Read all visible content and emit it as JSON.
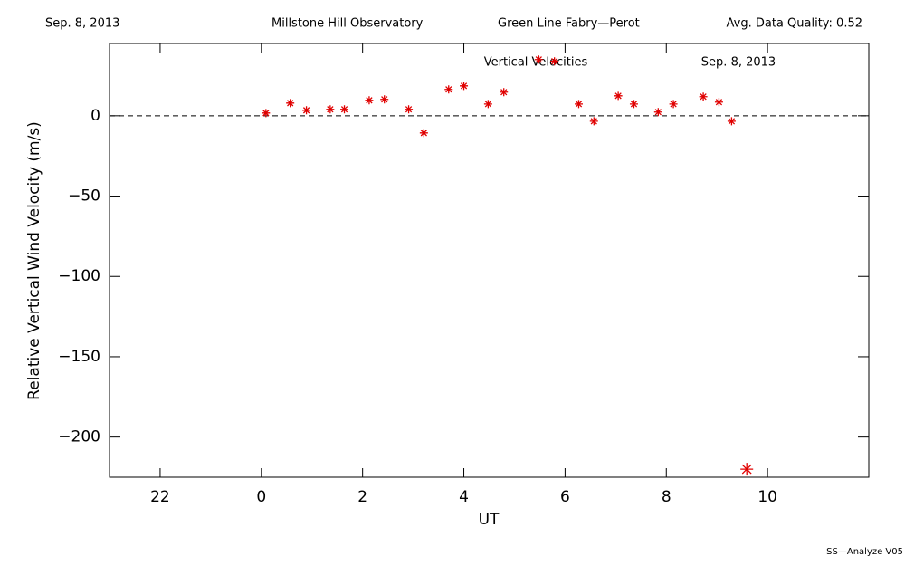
{
  "header": {
    "date": "Sep. 8, 2013",
    "observatory": "Millstone Hill Observatory",
    "instrument": "Green Line Fabry—Perot",
    "quality": "Avg. Data Quality: 0.52"
  },
  "footer": "SS—Analyze V05",
  "chart_data": {
    "type": "scatter",
    "annotations": [
      "Vertical Velocities",
      "Sep. 8, 2013"
    ],
    "xlabel": "UT",
    "ylabel": "Relative Vertical Wind Velocity (m/s)",
    "color": "#e00000",
    "xlim": [
      -3,
      12
    ],
    "xticks": [
      {
        "value": -2,
        "label": "22"
      },
      0,
      2,
      4,
      6,
      8,
      10
    ],
    "ylim": [
      -225,
      45
    ],
    "yticks": [
      {
        "value": -200,
        "label": "−200"
      },
      {
        "value": -150,
        "label": "−150"
      },
      {
        "value": -100,
        "label": "−100"
      },
      {
        "value": -50,
        "label": "−50"
      },
      0
    ],
    "hline": 0,
    "x": [
      0.09,
      0.57,
      0.89,
      1.36,
      1.64,
      2.13,
      2.43,
      2.91,
      3.21,
      3.7,
      4.0,
      4.48,
      4.79,
      5.48,
      5.79,
      6.27,
      6.57,
      7.05,
      7.36,
      7.84,
      8.14,
      8.73,
      9.04,
      9.29,
      9.59
    ],
    "values": [
      1.7,
      7.9,
      3.4,
      4,
      4,
      9.6,
      10.2,
      4,
      -10.7,
      16.4,
      18.6,
      7.3,
      14.7,
      35,
      33.9,
      7.3,
      -3.4,
      12.4,
      7.3,
      2.3,
      7.3,
      11.9,
      8.5,
      -3.4,
      -220
    ]
  }
}
